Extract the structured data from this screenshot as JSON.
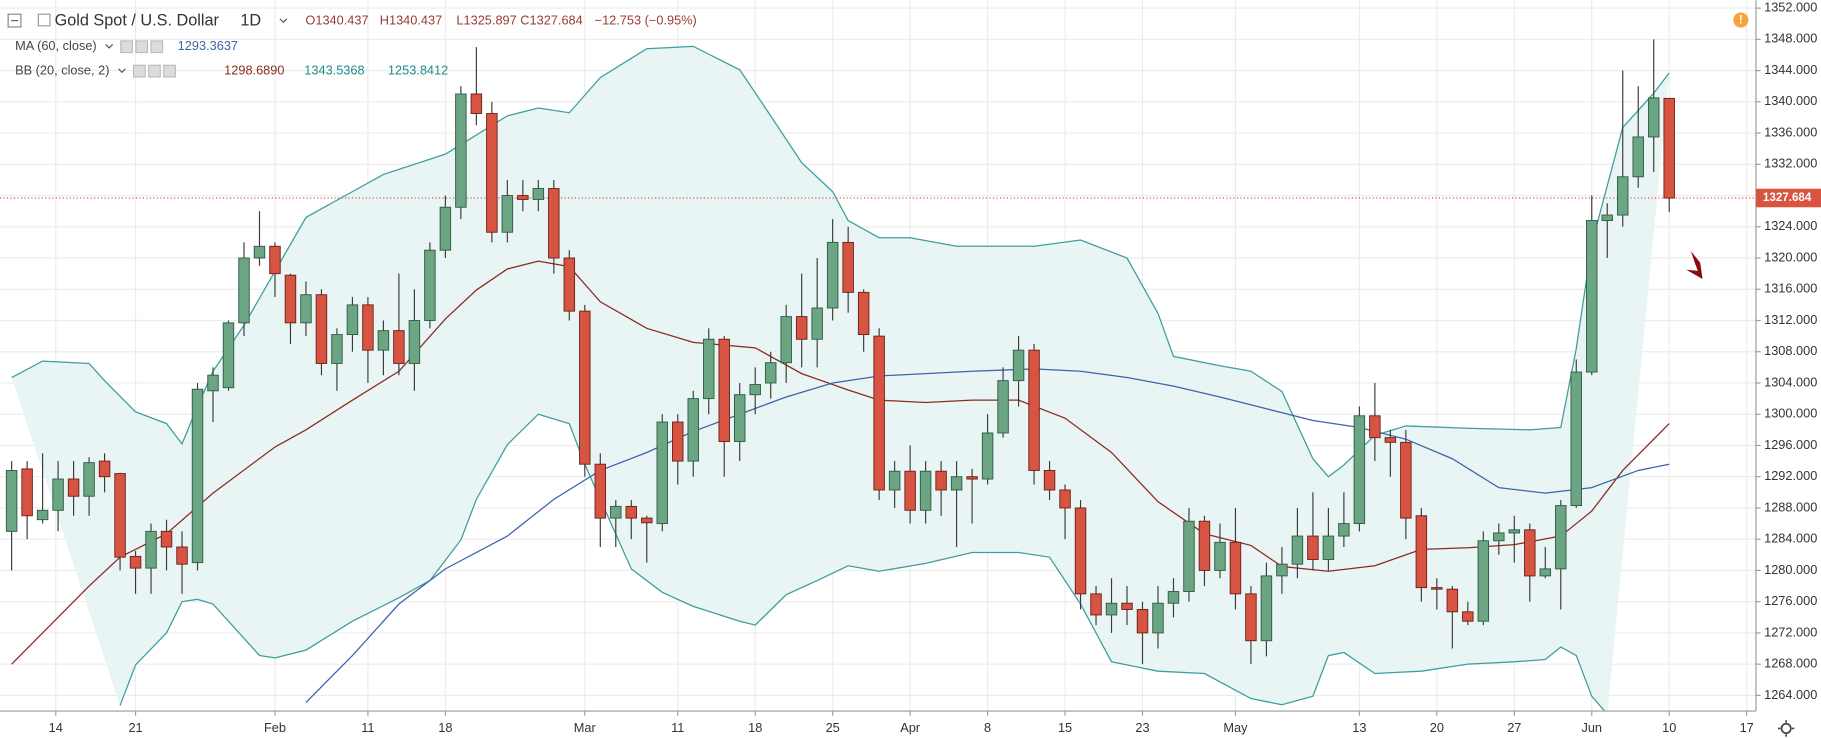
{
  "chart_data": {
    "type": "candlestick",
    "title": "Gold Spot / U.S. Dollar",
    "interval": "1D",
    "ohlc_header": [
      "O1340.437",
      "H1340.437",
      "L1325.897",
      "C1327.684",
      "−12.753 (−0.95%)"
    ],
    "indicators": [
      {
        "label": "MA (60, close)",
        "readings": [
          "1293.3637"
        ],
        "colors": [
          "#3e64ad"
        ]
      },
      {
        "label": "BB (20, close, 2)",
        "readings": [
          "1298.6890",
          "1343.5368",
          "1253.8412"
        ],
        "colors": [
          "#8b2c22",
          "#1f8a8a",
          "#1f8a8a"
        ]
      }
    ],
    "up_color": "#6ba583",
    "down_color": "#d75442",
    "xlim": [
      -0.75,
      112.6
    ],
    "ylim": [
      1262.0,
      1353.0
    ],
    "xticks": [
      {
        "value": 2.85,
        "label": "14"
      },
      {
        "value": 8,
        "label": "21"
      },
      {
        "value": 17,
        "label": "Feb"
      },
      {
        "value": 23,
        "label": "11"
      },
      {
        "value": 28,
        "label": "18"
      },
      {
        "value": 37,
        "label": "Mar"
      },
      {
        "value": 43,
        "label": "11"
      },
      {
        "value": 48,
        "label": "18"
      },
      {
        "value": 53,
        "label": "25"
      },
      {
        "value": 58,
        "label": "Apr"
      },
      {
        "value": 63,
        "label": "8"
      },
      {
        "value": 68,
        "label": "15"
      },
      {
        "value": 73,
        "label": "23"
      },
      {
        "value": 79,
        "label": "May"
      },
      {
        "value": 87,
        "label": "13"
      },
      {
        "value": 92,
        "label": "20"
      },
      {
        "value": 97,
        "label": "27"
      },
      {
        "value": 102,
        "label": "Jun"
      },
      {
        "value": 107,
        "label": "10"
      },
      {
        "value": 112,
        "label": "17"
      }
    ],
    "yticks": [
      {
        "value": 1264,
        "label": "1264.000"
      },
      {
        "value": 1268,
        "label": "1268.000"
      },
      {
        "value": 1272,
        "label": "1272.000"
      },
      {
        "value": 1276,
        "label": "1276.000"
      },
      {
        "value": 1280,
        "label": "1280.000"
      },
      {
        "value": 1284,
        "label": "1284.000"
      },
      {
        "value": 1288,
        "label": "1288.000"
      },
      {
        "value": 1292,
        "label": "1292.000"
      },
      {
        "value": 1296,
        "label": "1296.000"
      },
      {
        "value": 1300,
        "label": "1300.000"
      },
      {
        "value": 1304,
        "label": "1304.000"
      },
      {
        "value": 1308,
        "label": "1308.000"
      },
      {
        "value": 1312,
        "label": "1312.000"
      },
      {
        "value": 1316,
        "label": "1316.000"
      },
      {
        "value": 1320,
        "label": "1320.000"
      },
      {
        "value": 1324,
        "label": "1324.000"
      },
      {
        "value": 1328,
        "label": "1328.000"
      },
      {
        "value": 1332,
        "label": "1332.000"
      },
      {
        "value": 1336,
        "label": "1336.000"
      },
      {
        "value": 1340,
        "label": "1340.000"
      },
      {
        "value": 1344,
        "label": "1344.000"
      },
      {
        "value": 1348,
        "label": "1348.000"
      },
      {
        "value": 1352,
        "label": "1352.000"
      }
    ],
    "grid": true,
    "price_line": {
      "value": 1327.684,
      "label": "1327.684",
      "color": "#d75442"
    },
    "ohlc": [
      [
        1285,
        1294,
        1280,
        1292.8
      ],
      [
        1293,
        1294,
        1284,
        1287
      ],
      [
        1286.5,
        1295,
        1286,
        1287.7
      ],
      [
        1287.7,
        1294,
        1285,
        1291.7
      ],
      [
        1291.7,
        1294,
        1287,
        1289.5
      ],
      [
        1289.5,
        1294.5,
        1287,
        1293.8
      ],
      [
        1294,
        1295,
        1290,
        1292
      ],
      [
        1292.4,
        1292.5,
        1280,
        1281.7
      ],
      [
        1281.8,
        1282.5,
        1277,
        1280.3
      ],
      [
        1280.3,
        1286,
        1277,
        1285
      ],
      [
        1285,
        1286.5,
        1280,
        1283
      ],
      [
        1283,
        1285,
        1277,
        1280.8
      ],
      [
        1281,
        1304,
        1280,
        1303.2
      ],
      [
        1303,
        1306,
        1299,
        1305
      ],
      [
        1303.4,
        1312,
        1303,
        1311.7
      ],
      [
        1311.7,
        1322,
        1310,
        1320
      ],
      [
        1320,
        1326,
        1319,
        1321.5
      ],
      [
        1321.5,
        1322,
        1315,
        1318
      ],
      [
        1317.8,
        1318,
        1309,
        1311.7
      ],
      [
        1311.7,
        1317,
        1310,
        1315.3
      ],
      [
        1315.3,
        1316,
        1305,
        1306.5
      ],
      [
        1306.5,
        1311,
        1303,
        1310.2
      ],
      [
        1310.2,
        1315,
        1308,
        1314
      ],
      [
        1314,
        1315,
        1304,
        1308.2
      ],
      [
        1308.2,
        1312,
        1305,
        1310.7
      ],
      [
        1310.7,
        1318,
        1305,
        1306.5
      ],
      [
        1306.5,
        1316,
        1303,
        1312
      ],
      [
        1312,
        1322,
        1311,
        1321
      ],
      [
        1321,
        1328,
        1320,
        1326.5
      ],
      [
        1326.5,
        1342,
        1325,
        1341
      ],
      [
        1341,
        1347,
        1337,
        1338.5
      ],
      [
        1338.5,
        1340,
        1322,
        1323.3
      ],
      [
        1323.3,
        1330,
        1322,
        1328
      ],
      [
        1328,
        1330,
        1326,
        1327.5
      ],
      [
        1327.5,
        1330,
        1326,
        1328.9
      ],
      [
        1328.9,
        1330,
        1318,
        1320
      ],
      [
        1320,
        1321,
        1312,
        1313.2
      ],
      [
        1313.2,
        1314,
        1292,
        1293.6
      ],
      [
        1293.6,
        1295,
        1283,
        1286.7
      ],
      [
        1286.7,
        1289,
        1283,
        1288.2
      ],
      [
        1288.2,
        1289,
        1284,
        1286.7
      ],
      [
        1286.7,
        1287,
        1281,
        1286.1
      ],
      [
        1286,
        1300,
        1285,
        1299
      ],
      [
        1299,
        1300,
        1291,
        1294
      ],
      [
        1294,
        1303,
        1292,
        1302
      ],
      [
        1302,
        1311,
        1300,
        1309.6
      ],
      [
        1309.6,
        1310,
        1292,
        1296.5
      ],
      [
        1296.5,
        1304,
        1294,
        1302.5
      ],
      [
        1302.5,
        1306,
        1300,
        1303.8
      ],
      [
        1304,
        1308,
        1302,
        1306.6
      ],
      [
        1306.6,
        1314,
        1304,
        1312.5
      ],
      [
        1312.5,
        1318,
        1306,
        1309.6
      ],
      [
        1309.6,
        1320,
        1306,
        1313.6
      ],
      [
        1313.6,
        1325,
        1312,
        1322
      ],
      [
        1322,
        1324,
        1313,
        1315.6
      ],
      [
        1315.6,
        1316,
        1308,
        1310.2
      ],
      [
        1310,
        1311,
        1289,
        1290.3
      ],
      [
        1290.3,
        1294,
        1288,
        1292.7
      ],
      [
        1292.7,
        1296,
        1286,
        1287.7
      ],
      [
        1287.7,
        1294,
        1286,
        1292.7
      ],
      [
        1292.7,
        1294,
        1287,
        1290.3
      ],
      [
        1290.3,
        1294,
        1283,
        1292
      ],
      [
        1292,
        1293,
        1286,
        1291.7
      ],
      [
        1291.7,
        1300,
        1291,
        1297.6
      ],
      [
        1297.6,
        1306,
        1297,
        1304.3
      ],
      [
        1304.3,
        1310,
        1301,
        1308.2
      ],
      [
        1308.2,
        1309,
        1291,
        1292.8
      ],
      [
        1292.8,
        1294,
        1289,
        1290.3
      ],
      [
        1290.3,
        1291,
        1284,
        1288
      ],
      [
        1288,
        1289,
        1275,
        1277
      ],
      [
        1277,
        1278,
        1273,
        1274.3
      ],
      [
        1274.3,
        1279,
        1272,
        1275.8
      ],
      [
        1275.8,
        1278,
        1273,
        1275
      ],
      [
        1275,
        1276,
        1268,
        1272
      ],
      [
        1272,
        1278,
        1270,
        1275.8
      ],
      [
        1275.8,
        1279,
        1274,
        1277.3
      ],
      [
        1277.3,
        1288,
        1276,
        1286.3
      ],
      [
        1286.3,
        1287,
        1278,
        1280
      ],
      [
        1280,
        1286,
        1279,
        1283.6
      ],
      [
        1283.6,
        1288,
        1275,
        1277
      ],
      [
        1277,
        1278,
        1268,
        1271
      ],
      [
        1271,
        1281,
        1269,
        1279.3
      ],
      [
        1279.3,
        1283,
        1277,
        1280.8
      ],
      [
        1280.8,
        1288,
        1279,
        1284.4
      ],
      [
        1284.4,
        1290,
        1280,
        1281.4
      ],
      [
        1281.4,
        1288,
        1280,
        1284.4
      ],
      [
        1284.4,
        1290,
        1283,
        1286
      ],
      [
        1286,
        1301,
        1285,
        1299.8
      ],
      [
        1299.8,
        1304,
        1294,
        1297
      ],
      [
        1297,
        1298,
        1292,
        1296.4
      ],
      [
        1296.4,
        1298,
        1284,
        1286.7
      ],
      [
        1287,
        1288,
        1276,
        1277.8
      ],
      [
        1277.8,
        1279,
        1275,
        1277.6
      ],
      [
        1277.6,
        1278,
        1270,
        1274.7
      ],
      [
        1274.7,
        1276,
        1273,
        1273.5
      ],
      [
        1273.5,
        1285,
        1273,
        1283.8
      ],
      [
        1283.8,
        1286,
        1282,
        1284.8
      ],
      [
        1284.8,
        1287,
        1281,
        1285.2
      ],
      [
        1285.2,
        1286,
        1276,
        1279.3
      ],
      [
        1279.3,
        1283,
        1279,
        1280.2
      ],
      [
        1280.2,
        1289,
        1275,
        1288.3
      ],
      [
        1288.3,
        1307,
        1288,
        1305.4
      ],
      [
        1305.4,
        1328,
        1305,
        1324.8
      ],
      [
        1324.8,
        1327,
        1320,
        1325.5
      ],
      [
        1325.5,
        1344,
        1324,
        1330.4
      ],
      [
        1330.4,
        1342,
        1329,
        1335.5
      ],
      [
        1335.5,
        1348,
        1331,
        1340.5
      ],
      [
        1340.437,
        1340.437,
        1325.897,
        1327.684
      ]
    ],
    "band_fill": "#e9f4f4",
    "lines": [
      {
        "color": "#3f9e9e",
        "x": [
          0,
          2,
          5,
          6,
          8,
          10,
          11,
          12,
          13,
          15,
          19,
          22,
          24,
          28,
          32,
          34,
          36,
          38,
          41,
          44,
          47,
          49,
          51,
          53,
          54,
          56,
          58,
          61,
          66,
          69,
          72,
          74,
          75,
          78,
          80,
          82,
          84,
          85,
          86,
          88,
          90,
          94,
          98,
          100,
          101,
          102,
          104,
          106,
          107
        ],
        "values": [
          1304.7,
          1306.8,
          1306.5,
          1304.3,
          1300.3,
          1298.8,
          1296.2,
          1301,
          1305.5,
          1311.4,
          1325.2,
          1328.5,
          1330.7,
          1333.3,
          1338.2,
          1339.2,
          1338.6,
          1343.1,
          1346.8,
          1347.1,
          1344.1,
          1338.2,
          1332.2,
          1328.5,
          1324.8,
          1322.6,
          1322.6,
          1321.5,
          1321.5,
          1322.3,
          1320,
          1312.9,
          1307.4,
          1306.2,
          1305.5,
          1302.9,
          1294.3,
          1292,
          1293.5,
          1297.3,
          1298.5,
          1298.2,
          1298,
          1298.3,
          1308.4,
          1321.8,
          1336.7,
          1341.1,
          1343.7
        ]
      },
      {
        "color": "#3f9e9e",
        "x": [
          7,
          8,
          10,
          11,
          12,
          13,
          16,
          17,
          19,
          22,
          25,
          27,
          29,
          30,
          32,
          34,
          36,
          37,
          38,
          40,
          42,
          44,
          47,
          48,
          50,
          52,
          54,
          56,
          59,
          62,
          65,
          67,
          69,
          71,
          74,
          77,
          80,
          82,
          84,
          85,
          86,
          88,
          91,
          94,
          97,
          99,
          100,
          101,
          102,
          103
        ],
        "values": [
          1262.7,
          1267.9,
          1272,
          1276,
          1276.3,
          1275.7,
          1269.1,
          1268.8,
          1269.8,
          1273.5,
          1276.5,
          1278.7,
          1283.9,
          1289.1,
          1296.1,
          1300,
          1298.8,
          1293.6,
          1289.1,
          1280.2,
          1277.2,
          1275.4,
          1273.5,
          1273,
          1276.9,
          1278.7,
          1280.6,
          1279.9,
          1280.9,
          1282.3,
          1282.3,
          1281.7,
          1275.7,
          1268.3,
          1267.1,
          1266.8,
          1263.6,
          1262.8,
          1263.9,
          1269.1,
          1269.5,
          1266.8,
          1267.1,
          1268,
          1268.3,
          1268.6,
          1270.2,
          1269.1,
          1263.9,
          1261.6
        ]
      },
      {
        "color": "#8b2c22",
        "x": [
          0,
          2,
          5,
          7,
          10,
          13,
          17,
          19,
          22,
          25,
          28,
          30,
          32,
          34,
          36,
          38,
          41,
          44,
          48,
          51,
          54,
          56,
          59,
          62,
          65,
          68,
          71,
          74,
          77,
          80,
          82,
          85,
          88,
          91,
          94,
          97,
          100,
          102,
          104,
          107
        ],
        "values": [
          1268,
          1272,
          1278,
          1281.7,
          1284.7,
          1289.9,
          1295.8,
          1298,
          1301.8,
          1305.5,
          1312.2,
          1315.9,
          1318.6,
          1319.6,
          1318.9,
          1314.4,
          1311,
          1309.2,
          1308.5,
          1305.2,
          1303.1,
          1301.8,
          1301.5,
          1301.8,
          1301.8,
          1299.5,
          1295.1,
          1288.8,
          1284.7,
          1283.2,
          1280.5,
          1279.9,
          1280.6,
          1282.7,
          1282.9,
          1283.3,
          1284.4,
          1287.6,
          1292.8,
          1298.8
        ]
      },
      {
        "color": "#3e64ad",
        "x": [
          19,
          22,
          25,
          28,
          32,
          35,
          38,
          41,
          44,
          47,
          50,
          53,
          56,
          59,
          62,
          66,
          69,
          72,
          75,
          78,
          81,
          84,
          87,
          90,
          93,
          96,
          99,
          102,
          105,
          107
        ],
        "values": [
          1263.1,
          1269.1,
          1275.7,
          1280.2,
          1284.4,
          1289.1,
          1292.8,
          1295.1,
          1297.8,
          1300,
          1302.2,
          1304,
          1304.9,
          1305.2,
          1305.5,
          1305.8,
          1305.5,
          1304.7,
          1303.6,
          1302.2,
          1300.7,
          1299.2,
          1298.3,
          1296.8,
          1294.3,
          1290.6,
          1289.9,
          1290.6,
          1292.8,
          1293.6
        ]
      }
    ]
  }
}
